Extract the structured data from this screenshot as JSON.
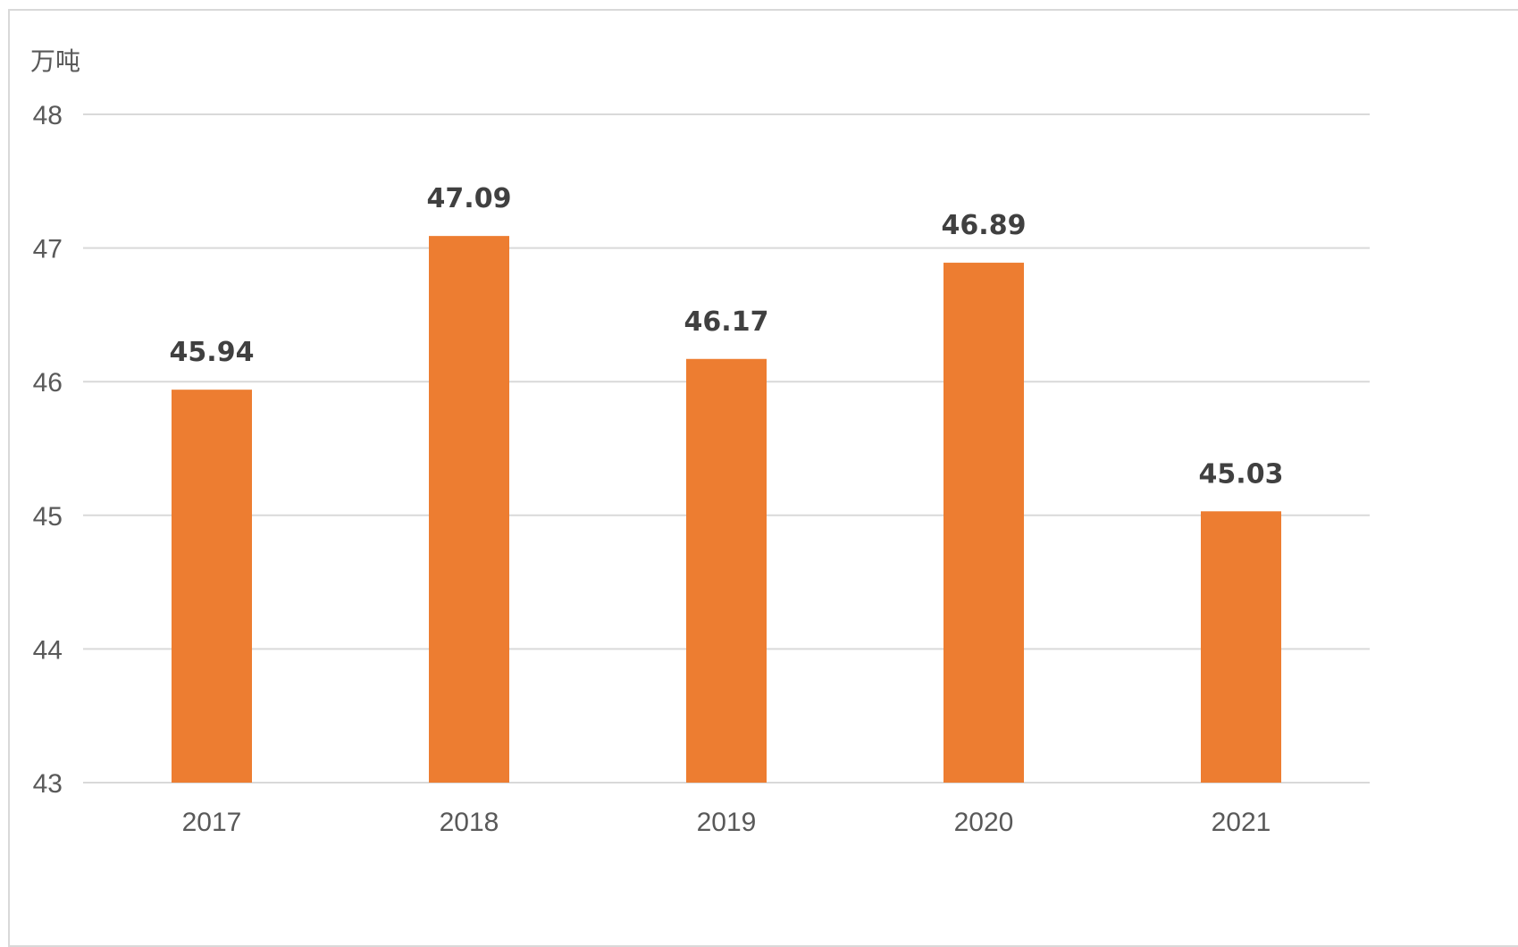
{
  "chart_data": {
    "type": "bar",
    "ylabel": "万吨",
    "categories": [
      "2017",
      "2018",
      "2019",
      "2020",
      "2021"
    ],
    "values": [
      45.94,
      47.09,
      46.17,
      46.89,
      45.03
    ],
    "data_labels": [
      "45.94",
      "47.09",
      "46.17",
      "46.89",
      "45.03"
    ],
    "ylim": [
      43,
      48
    ],
    "yticks": [
      "43",
      "44",
      "45",
      "46",
      "47",
      "48"
    ],
    "grid": true,
    "legend": "none",
    "colors": {
      "bar": "#ed7d31"
    }
  }
}
